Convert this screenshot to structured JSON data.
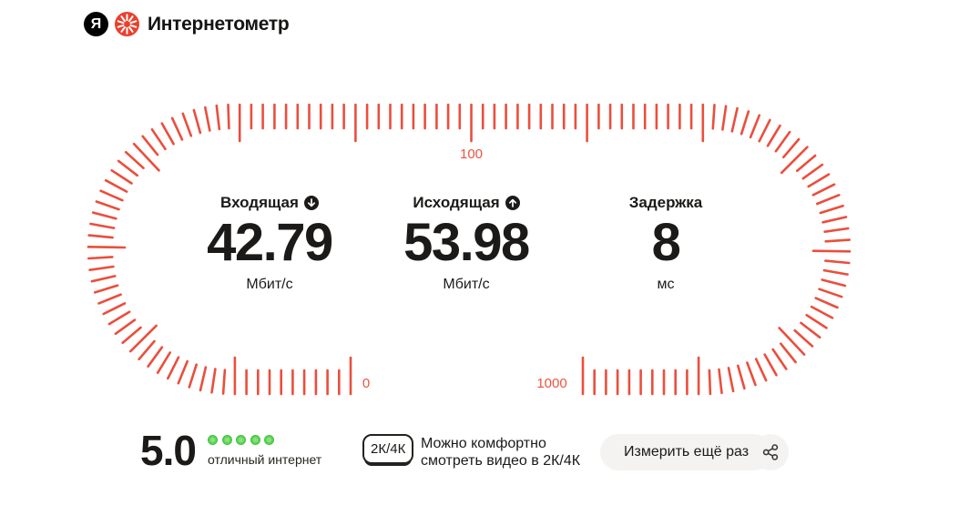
{
  "header": {
    "brand_letter": "Я",
    "title": "Интернетометр"
  },
  "gauge": {
    "tick_color": "#eb4e3c",
    "label_color": "#f0523f",
    "start_label": "0",
    "top_label": "100",
    "end_label": "1000"
  },
  "metrics": [
    {
      "label": "Входящая",
      "direction": "down",
      "value": "42.79",
      "unit": "Мбит/с"
    },
    {
      "label": "Исходящая",
      "direction": "up",
      "value": "53.98",
      "unit": "Мбит/с"
    },
    {
      "label": "Задержка",
      "direction": "none",
      "value": "8",
      "unit": "мс"
    }
  ],
  "rating": {
    "score": "5.0",
    "dots": 5,
    "dot_color": "#3ec63e",
    "caption": "отличный интернет"
  },
  "quality": {
    "badge": "2К/4К",
    "text_line1": "Можно комфортно",
    "text_line2": "смотреть видео в 2К/4К"
  },
  "actions": {
    "measure_again_label": "Измерить ещё раз"
  }
}
